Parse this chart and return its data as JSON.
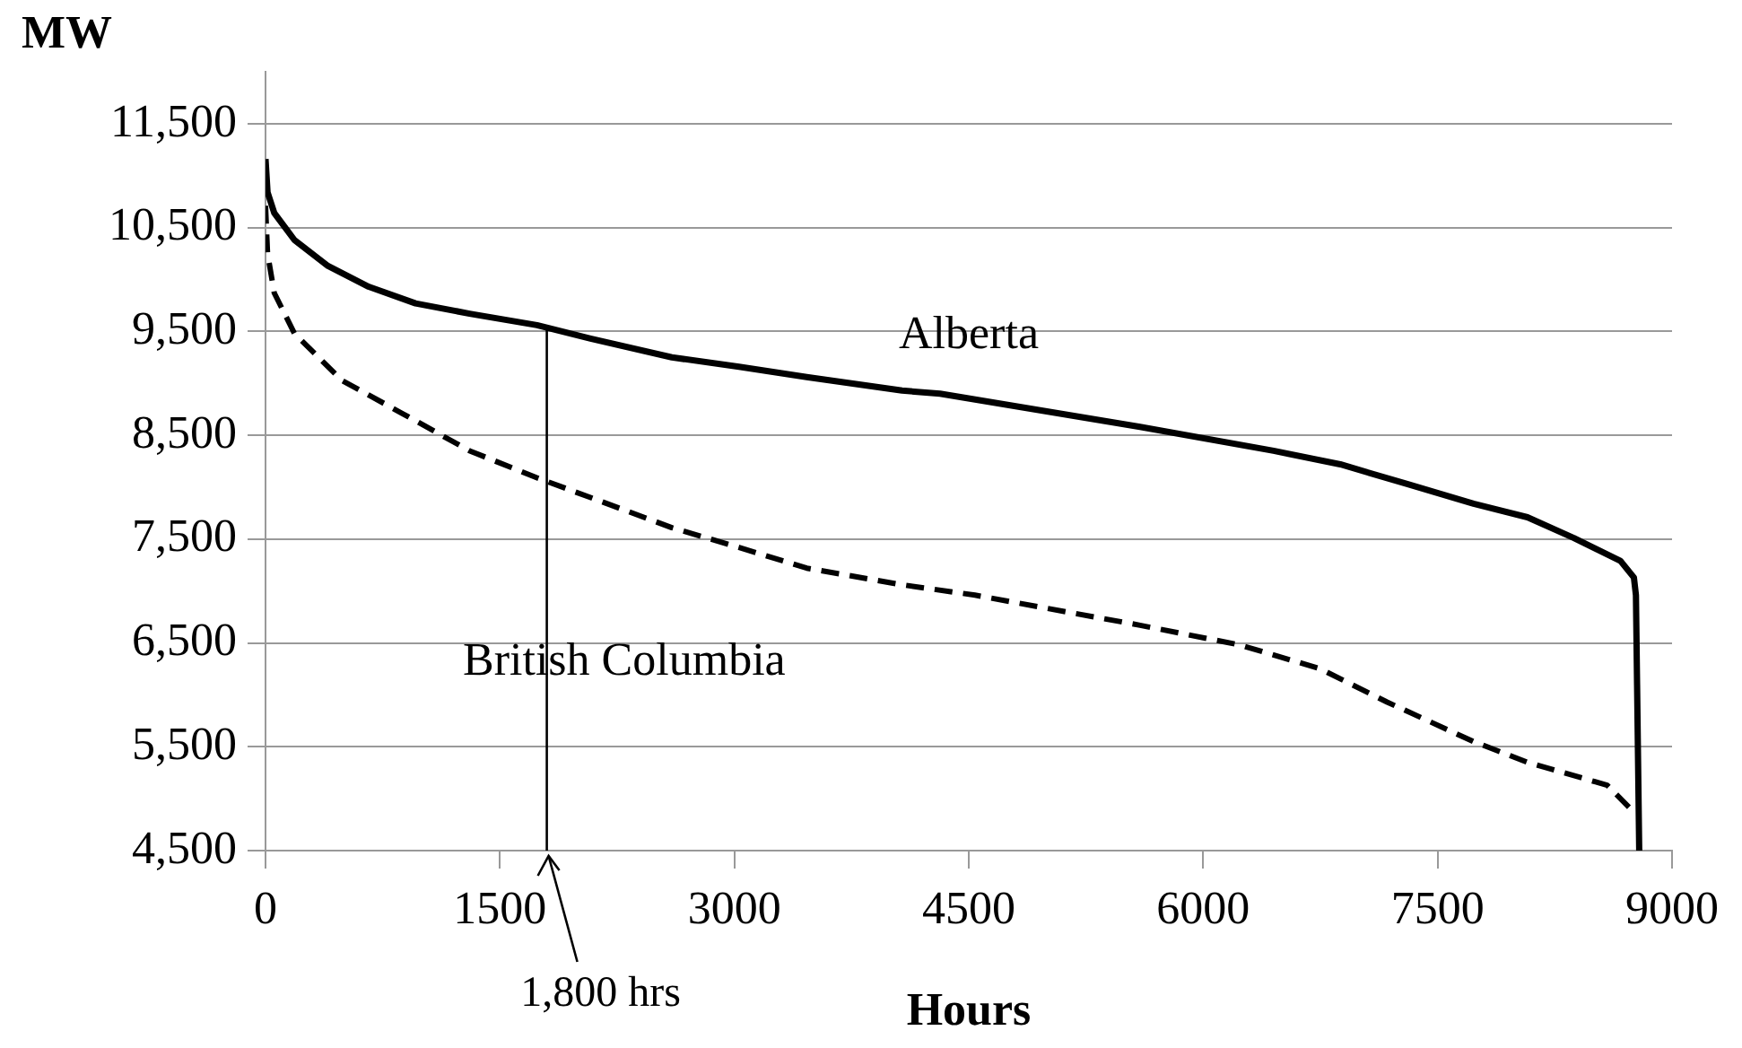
{
  "chart_data": {
    "type": "line",
    "xlabel": "Hours",
    "ylabel": "MW",
    "xlim": [
      0,
      9000
    ],
    "xticks": [
      0,
      1500,
      3000,
      4500,
      6000,
      7500,
      9000
    ],
    "ylim": [
      4500,
      12000
    ],
    "yticks": [
      {
        "value": 4500,
        "label": "4,500"
      },
      {
        "value": 5500,
        "label": "5,500"
      },
      {
        "value": 6500,
        "label": "6,500"
      },
      {
        "value": 7500,
        "label": "7,500"
      },
      {
        "value": 8500,
        "label": "8,500"
      },
      {
        "value": 9500,
        "label": "9,500"
      },
      {
        "value": 10500,
        "label": "10,500"
      },
      {
        "value": 11500,
        "label": "11,500"
      }
    ],
    "grid": "y",
    "legend": false,
    "marker": "none",
    "ref_lines": [
      {
        "axis": "x",
        "value": 1800,
        "label": "1,800 hrs",
        "color": "#000000"
      }
    ],
    "series": [
      {
        "name": "Alberta",
        "color": "#000000",
        "line_style": "solid",
        "x": [
          0,
          13,
          56,
          185,
          400,
          660,
          960,
          1306,
          1737,
          2080,
          2600,
          3030,
          3463,
          4073,
          4316,
          5596,
          6450,
          6877,
          7305,
          7730,
          8075,
          8372,
          8670,
          8756,
          8769,
          8790
        ],
        "values": [
          11160,
          10840,
          10640,
          10380,
          10130,
          9930,
          9770,
          9670,
          9560,
          9430,
          9250,
          9160,
          9060,
          8930,
          8900,
          8580,
          8350,
          8220,
          8030,
          7840,
          7710,
          7510,
          7290,
          7130,
          6960,
          4500
        ]
      },
      {
        "name": "British Columbia",
        "color": "#000000",
        "line_style": "dashed",
        "x": [
          0,
          13,
          56,
          185,
          487,
          875,
          1306,
          1737,
          2080,
          2600,
          3030,
          3463,
          4073,
          4540,
          5596,
          6236,
          6750,
          7177,
          7730,
          8075,
          8585,
          8756
        ],
        "values": [
          10710,
          10250,
          9870,
          9480,
          9030,
          8710,
          8350,
          8090,
          7900,
          7610,
          7420,
          7220,
          7060,
          6960,
          6670,
          6480,
          6250,
          5930,
          5550,
          5350,
          5130,
          4870
        ]
      }
    ]
  }
}
